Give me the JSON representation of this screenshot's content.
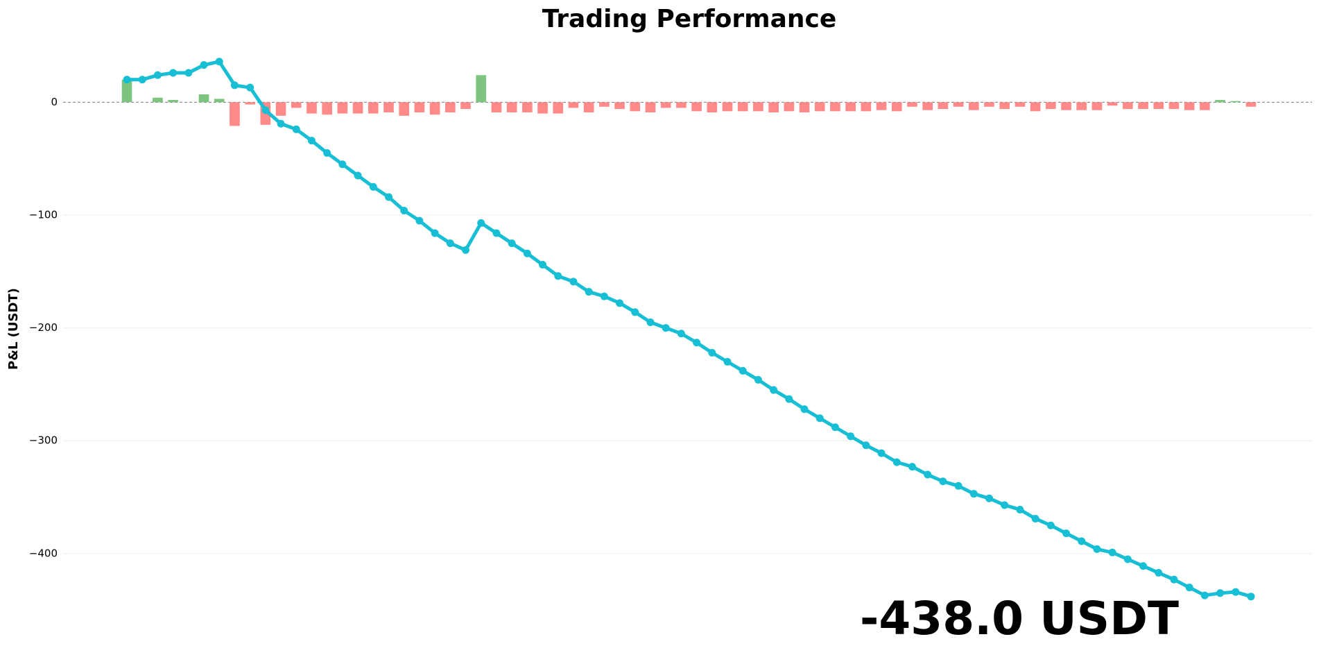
{
  "chart_data": {
    "type": "combo",
    "title": "Trading Performance",
    "y_label": "P&L (USDT)",
    "annotation": "-438.0 USDT",
    "annotation_color": "#ff4d4d",
    "ylim": [
      -480,
      50
    ],
    "yticks": [
      0,
      {
        "value": -100,
        "label": "−100"
      },
      {
        "value": -200,
        "label": "−200"
      },
      {
        "value": -300,
        "label": "−300"
      },
      {
        "value": -400,
        "label": "−400"
      }
    ],
    "grid": true,
    "series": [
      {
        "type": "bar",
        "positive_color": "#7dc47f",
        "negative_color": "#ff8a8a",
        "values": [
          20,
          0,
          4,
          2,
          0,
          7,
          3,
          -21,
          -2,
          -20,
          -12,
          -5,
          -10,
          -11,
          -10,
          -10,
          -10,
          -9,
          -12,
          -9,
          -11,
          -9,
          -6,
          24,
          -9,
          -9,
          -9,
          -10,
          -10,
          -5,
          -9,
          -4,
          -6,
          -8,
          -9,
          -5,
          -5,
          -8,
          -9,
          -8,
          -8,
          -8,
          -9,
          -8,
          -9,
          -8,
          -8,
          -8,
          -8,
          -7,
          -8,
          -4,
          -7,
          -6,
          -4,
          -7,
          -4,
          -6,
          -4,
          -8,
          -6,
          -7,
          -7,
          -7,
          -3,
          -6,
          -6,
          -6,
          -6,
          -7,
          -7,
          2,
          1,
          -4
        ]
      },
      {
        "type": "line",
        "color": "#17bed4",
        "values": [
          20,
          20,
          24,
          26,
          26,
          33,
          36,
          15,
          13,
          -7,
          -19,
          -24,
          -34,
          -45,
          -55,
          -65,
          -75,
          -84,
          -96,
          -105,
          -116,
          -125,
          -131,
          -107,
          -116,
          -125,
          -134,
          -144,
          -154,
          -159,
          -168,
          -172,
          -178,
          -186,
          -195,
          -200,
          -205,
          -213,
          -222,
          -230,
          -238,
          -246,
          -255,
          -263,
          -272,
          -280,
          -288,
          -296,
          -304,
          -311,
          -319,
          -323,
          -330,
          -336,
          -340,
          -347,
          -351,
          -357,
          -361,
          -369,
          -375,
          -382,
          -389,
          -396,
          -399,
          -405,
          -411,
          -417,
          -423,
          -430,
          -437,
          -435,
          -434,
          -438
        ]
      }
    ]
  }
}
